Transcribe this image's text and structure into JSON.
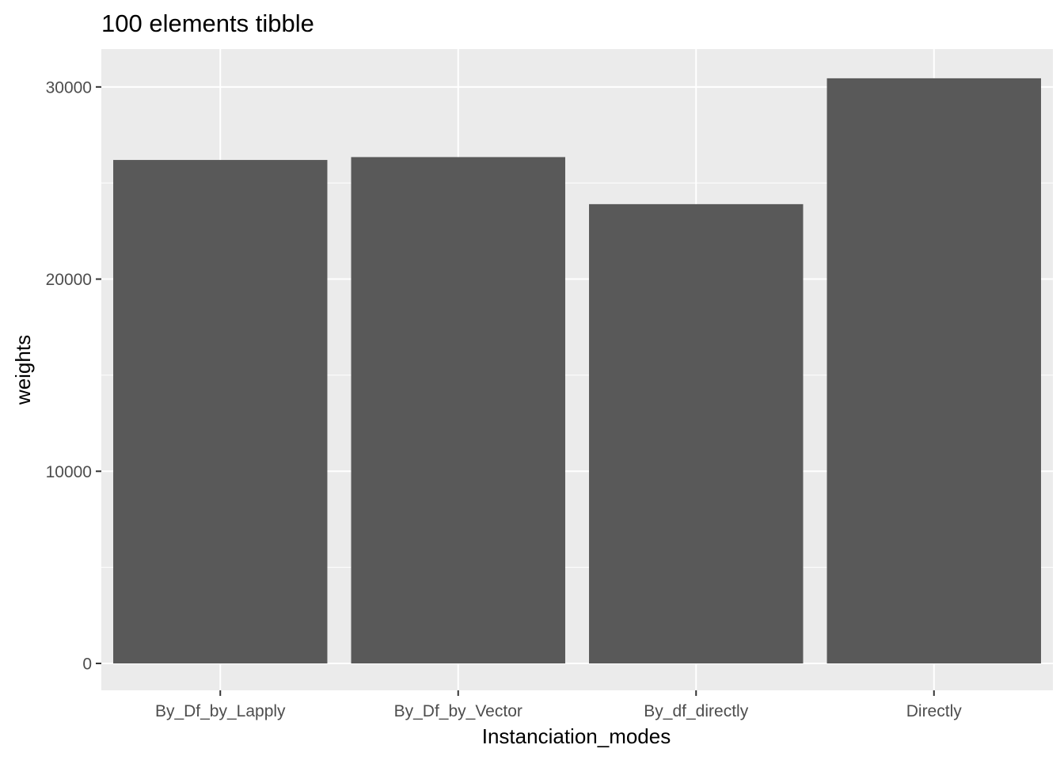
{
  "chart_data": {
    "type": "bar",
    "title": "100  elements  tibble",
    "xlabel": "Instanciation_modes",
    "ylabel": "weights",
    "categories": [
      "By_Df_by_Lapply",
      "By_Df_by_Vector",
      "By_df_directly",
      "Directly"
    ],
    "values": [
      26200,
      26350,
      23900,
      30450
    ],
    "ylim": [
      -1400,
      31970
    ],
    "yticks": [
      0,
      10000,
      20000,
      30000
    ],
    "grid": true,
    "legend": "none",
    "colors": {
      "bar": "#595959",
      "panel": "#ebebeb",
      "gridline": "#ffffff",
      "tick": "#333333"
    }
  }
}
